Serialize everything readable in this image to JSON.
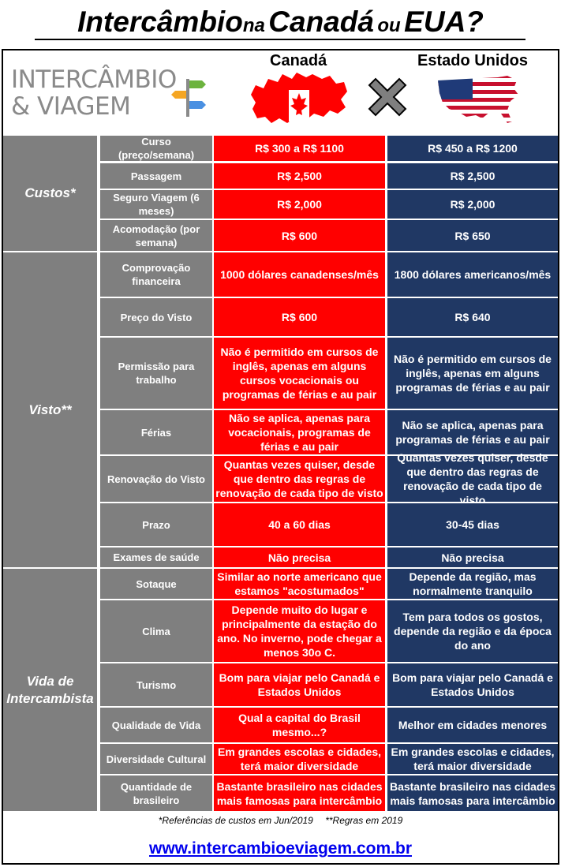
{
  "title": {
    "part1": "Intercâmbio",
    "connector": "na",
    "part2": "Canadá",
    "or": "ou",
    "part3": "EUA?"
  },
  "header": {
    "logo_line1": "INTERCÂMBIO",
    "logo_line2": "& VIAGEM",
    "country1": "Canadá",
    "country2": "Estado Unidos"
  },
  "colors": {
    "canada": "#ff0000",
    "usa": "#203864",
    "category": "#7f7f7f",
    "link": "#0000ee"
  },
  "sections": [
    {
      "category": "Custos*",
      "rows": [
        {
          "label": "Curso (preço/semana)",
          "canada": "R$ 300 a R$ 1100",
          "usa": "R$ 450 a R$ 1200"
        },
        {
          "label": "Passagem",
          "canada": "R$ 2,500",
          "usa": "R$ 2,500"
        },
        {
          "label": "Seguro Viagem (6 meses)",
          "canada": "R$ 2,000",
          "usa": "R$ 2,000"
        },
        {
          "label": "Acomodação (por semana)",
          "canada": "R$ 600",
          "usa": "R$ 650"
        }
      ]
    },
    {
      "category": "Visto**",
      "rows": [
        {
          "label": "Comprovação financeira",
          "canada": "1000 dólares canadenses/mês",
          "usa": "1800 dólares americanos/mês"
        },
        {
          "label": "Preço do Visto",
          "canada": "R$ 600",
          "usa": "R$ 640"
        },
        {
          "label": "Permissão para trabalho",
          "canada": "Não é permitido em cursos de inglês, apenas em alguns cursos vocacionais ou programas de férias e au pair",
          "usa": "Não é permitido em cursos de inglês, apenas em alguns programas de férias e au pair"
        },
        {
          "label": "Férias",
          "canada": "Não se aplica, apenas para vocacionais, programas de férias e au pair",
          "usa": "Não se aplica, apenas para programas de férias e au pair"
        },
        {
          "label": "Renovação do Visto",
          "canada": "Quantas vezes quiser, desde que dentro das regras de renovação de cada tipo de visto",
          "usa": "Quantas vezes quiser, desde que dentro das regras de renovação de cada tipo de visto"
        },
        {
          "label": "Prazo",
          "canada": "40 a 60 dias",
          "usa": "30-45 dias"
        },
        {
          "label": "Exames de saúde",
          "canada": "Não precisa",
          "usa": "Não precisa"
        }
      ]
    },
    {
      "category": "Vida de Intercambista",
      "rows": [
        {
          "label": "Sotaque",
          "canada": "Similar ao norte americano que estamos \"acostumados\"",
          "usa": "Depende da região, mas normalmente tranquilo"
        },
        {
          "label": "Clima",
          "canada": "Depende muito do lugar e principalmente da estação do ano. No inverno, pode chegar a menos 30o C.",
          "usa": "Tem para todos os gostos, depende da região e da época do ano"
        },
        {
          "label": "Turismo",
          "canada": "Bom para viajar pelo Canadá e Estados Unidos",
          "usa": "Bom para viajar pelo Canadá e Estados Unidos"
        },
        {
          "label": "Qualidade de Vida",
          "canada": "Qual a capital do Brasil mesmo...?",
          "usa": "Melhor em cidades menores"
        },
        {
          "label": "Diversidade Cultural",
          "canada": "Em grandes escolas e cidades, terá maior diversidade",
          "usa": "Em grandes escolas e cidades, terá maior diversidade"
        },
        {
          "label": "Quantidade de brasileiro",
          "canada": "Bastante brasileiro nas cidades mais famosas para intercâmbio",
          "usa": "Bastante brasileiro nas cidades mais famosas para intercâmbio"
        }
      ]
    }
  ],
  "footer": {
    "note1": "*Referências de custos em Jun/2019",
    "note2": "**Regras em 2019",
    "website": "www.intercambioeviagem.com.br"
  }
}
